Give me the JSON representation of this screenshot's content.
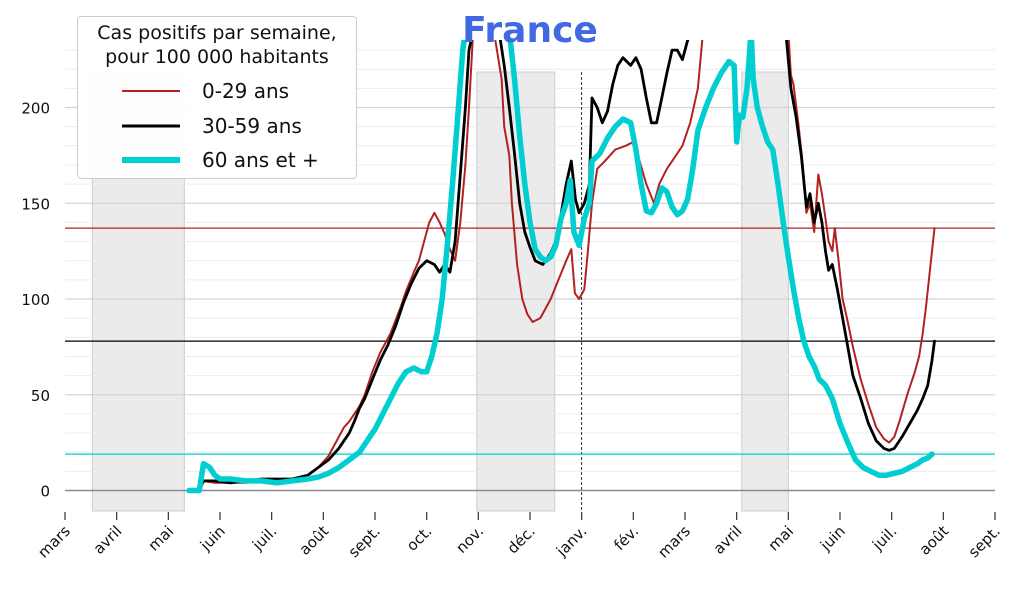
{
  "chart_data": {
    "type": "line",
    "title": "France",
    "legend_title": "Cas positifs par semaine,\npour 100 000 habitants",
    "legend_position": "top-left",
    "ylim": [
      -11,
      240
    ],
    "yticks": [
      0,
      50,
      100,
      150,
      200
    ],
    "x_month_ticks": [
      "mars",
      "avril",
      "mai",
      "juin",
      "juil.",
      "août",
      "sept.",
      "oct.",
      "nov.",
      "déc.",
      "janv.",
      "fév.",
      "mars",
      "avril",
      "mai",
      "juin",
      "juil.",
      "août",
      "sept."
    ],
    "x_unit": "months since 1 March 2020",
    "xlim": [
      0,
      18
    ],
    "shaded_periods": [
      [
        0.53,
        2.31
      ],
      [
        7.97,
        9.48
      ],
      [
        13.1,
        14.0
      ]
    ],
    "vertical_marker": 10.0,
    "grid": true,
    "series": [
      {
        "name": "0-29 ans",
        "color": "#b22222",
        "current_level": 137,
        "points": [
          [
            2.4,
            0
          ],
          [
            2.6,
            0
          ],
          [
            2.68,
            5
          ],
          [
            2.9,
            4
          ],
          [
            3.2,
            4
          ],
          [
            3.5,
            4
          ],
          [
            3.8,
            5
          ],
          [
            4.1,
            5
          ],
          [
            4.4,
            6
          ],
          [
            4.7,
            8
          ],
          [
            4.9,
            12
          ],
          [
            5.1,
            18
          ],
          [
            5.3,
            28
          ],
          [
            5.4,
            33
          ],
          [
            5.5,
            36
          ],
          [
            5.6,
            40
          ],
          [
            5.7,
            44
          ],
          [
            5.8,
            50
          ],
          [
            5.95,
            62
          ],
          [
            6.1,
            72
          ],
          [
            6.3,
            82
          ],
          [
            6.5,
            96
          ],
          [
            6.6,
            104
          ],
          [
            6.75,
            114
          ],
          [
            6.85,
            120
          ],
          [
            6.95,
            130
          ],
          [
            7.05,
            140
          ],
          [
            7.15,
            145
          ],
          [
            7.25,
            140
          ],
          [
            7.35,
            134
          ],
          [
            7.45,
            126
          ],
          [
            7.55,
            120
          ],
          [
            7.65,
            140
          ],
          [
            7.75,
            170
          ],
          [
            7.82,
            200
          ],
          [
            7.9,
            240
          ],
          [
            8.3,
            240
          ],
          [
            8.45,
            215
          ],
          [
            8.5,
            190
          ],
          [
            8.6,
            175
          ],
          [
            8.65,
            150
          ],
          [
            8.75,
            118
          ],
          [
            8.85,
            100
          ],
          [
            8.95,
            92
          ],
          [
            9.05,
            88
          ],
          [
            9.2,
            90
          ],
          [
            9.3,
            95
          ],
          [
            9.4,
            100
          ],
          [
            9.55,
            110
          ],
          [
            9.7,
            120
          ],
          [
            9.8,
            126
          ],
          [
            9.87,
            103
          ],
          [
            9.95,
            100
          ],
          [
            10.05,
            105
          ],
          [
            10.12,
            125
          ],
          [
            10.2,
            150
          ],
          [
            10.3,
            168
          ],
          [
            10.45,
            172
          ],
          [
            10.65,
            178
          ],
          [
            10.85,
            180
          ],
          [
            11.0,
            182
          ],
          [
            11.1,
            174
          ],
          [
            11.25,
            160
          ],
          [
            11.4,
            150
          ],
          [
            11.5,
            160
          ],
          [
            11.65,
            168
          ],
          [
            11.8,
            174
          ],
          [
            11.95,
            180
          ],
          [
            12.1,
            192
          ],
          [
            12.25,
            210
          ],
          [
            12.35,
            240
          ],
          [
            14.0,
            240
          ],
          [
            14.05,
            217
          ],
          [
            14.1,
            212
          ],
          [
            14.2,
            190
          ],
          [
            14.28,
            170
          ],
          [
            14.35,
            145
          ],
          [
            14.42,
            150
          ],
          [
            14.5,
            135
          ],
          [
            14.58,
            165
          ],
          [
            14.65,
            155
          ],
          [
            14.72,
            142
          ],
          [
            14.78,
            130
          ],
          [
            14.85,
            125
          ],
          [
            14.9,
            137
          ],
          [
            14.98,
            118
          ],
          [
            15.05,
            100
          ],
          [
            15.15,
            88
          ],
          [
            15.25,
            75
          ],
          [
            15.4,
            58
          ],
          [
            15.55,
            45
          ],
          [
            15.7,
            33
          ],
          [
            15.85,
            27
          ],
          [
            15.95,
            25
          ],
          [
            16.05,
            28
          ],
          [
            16.15,
            36
          ],
          [
            16.3,
            50
          ],
          [
            16.45,
            62
          ],
          [
            16.53,
            70
          ],
          [
            16.6,
            82
          ],
          [
            16.66,
            95
          ],
          [
            16.72,
            110
          ],
          [
            16.78,
            125
          ],
          [
            16.83,
            137
          ]
        ]
      },
      {
        "name": "30-59 ans",
        "color": "#000000",
        "current_level": 78,
        "points": [
          [
            2.4,
            0
          ],
          [
            2.6,
            0
          ],
          [
            2.68,
            5
          ],
          [
            2.9,
            5
          ],
          [
            3.2,
            4
          ],
          [
            3.5,
            5
          ],
          [
            3.8,
            6
          ],
          [
            4.1,
            6
          ],
          [
            4.4,
            6
          ],
          [
            4.7,
            8
          ],
          [
            4.9,
            12
          ],
          [
            5.1,
            16
          ],
          [
            5.3,
            22
          ],
          [
            5.4,
            26
          ],
          [
            5.5,
            30
          ],
          [
            5.6,
            36
          ],
          [
            5.7,
            43
          ],
          [
            5.8,
            48
          ],
          [
            5.95,
            58
          ],
          [
            6.1,
            68
          ],
          [
            6.25,
            76
          ],
          [
            6.4,
            86
          ],
          [
            6.55,
            98
          ],
          [
            6.7,
            108
          ],
          [
            6.85,
            116
          ],
          [
            7.0,
            120
          ],
          [
            7.15,
            118
          ],
          [
            7.25,
            114
          ],
          [
            7.35,
            118
          ],
          [
            7.45,
            114
          ],
          [
            7.55,
            130
          ],
          [
            7.65,
            165
          ],
          [
            7.75,
            200
          ],
          [
            7.82,
            230
          ],
          [
            7.9,
            240
          ],
          [
            8.4,
            240
          ],
          [
            8.5,
            222
          ],
          [
            8.6,
            200
          ],
          [
            8.7,
            176
          ],
          [
            8.8,
            150
          ],
          [
            8.9,
            135
          ],
          [
            9.0,
            127
          ],
          [
            9.1,
            120
          ],
          [
            9.25,
            118
          ],
          [
            9.4,
            124
          ],
          [
            9.5,
            130
          ],
          [
            9.6,
            144
          ],
          [
            9.7,
            160
          ],
          [
            9.8,
            172
          ],
          [
            9.88,
            152
          ],
          [
            9.95,
            145
          ],
          [
            10.05,
            150
          ],
          [
            10.15,
            160
          ],
          [
            10.2,
            205
          ],
          [
            10.3,
            200
          ],
          [
            10.4,
            192
          ],
          [
            10.5,
            198
          ],
          [
            10.6,
            212
          ],
          [
            10.7,
            222
          ],
          [
            10.8,
            226
          ],
          [
            10.95,
            222
          ],
          [
            11.05,
            226
          ],
          [
            11.15,
            220
          ],
          [
            11.25,
            205
          ],
          [
            11.35,
            192
          ],
          [
            11.45,
            192
          ],
          [
            11.55,
            205
          ],
          [
            11.65,
            218
          ],
          [
            11.75,
            230
          ],
          [
            11.85,
            230
          ],
          [
            11.95,
            225
          ],
          [
            12.05,
            235
          ],
          [
            12.15,
            240
          ],
          [
            13.95,
            240
          ],
          [
            14.0,
            225
          ],
          [
            14.05,
            210
          ],
          [
            14.15,
            195
          ],
          [
            14.25,
            175
          ],
          [
            14.35,
            148
          ],
          [
            14.42,
            155
          ],
          [
            14.5,
            140
          ],
          [
            14.58,
            150
          ],
          [
            14.65,
            140
          ],
          [
            14.72,
            125
          ],
          [
            14.78,
            115
          ],
          [
            14.85,
            118
          ],
          [
            14.95,
            105
          ],
          [
            15.05,
            90
          ],
          [
            15.15,
            75
          ],
          [
            15.25,
            60
          ],
          [
            15.4,
            48
          ],
          [
            15.55,
            35
          ],
          [
            15.7,
            26
          ],
          [
            15.85,
            22
          ],
          [
            15.95,
            21
          ],
          [
            16.05,
            22
          ],
          [
            16.2,
            28
          ],
          [
            16.35,
            35
          ],
          [
            16.5,
            42
          ],
          [
            16.6,
            48
          ],
          [
            16.7,
            55
          ],
          [
            16.78,
            68
          ],
          [
            16.83,
            78
          ]
        ]
      },
      {
        "name": "60 ans et +",
        "color": "#00ced1",
        "current_level": 19,
        "points": [
          [
            2.4,
            0
          ],
          [
            2.6,
            0
          ],
          [
            2.68,
            14
          ],
          [
            2.8,
            12
          ],
          [
            2.9,
            8
          ],
          [
            3.0,
            6
          ],
          [
            3.2,
            6
          ],
          [
            3.5,
            5
          ],
          [
            3.8,
            5
          ],
          [
            4.1,
            4
          ],
          [
            4.4,
            5
          ],
          [
            4.7,
            6
          ],
          [
            4.9,
            7
          ],
          [
            5.1,
            9
          ],
          [
            5.3,
            12
          ],
          [
            5.5,
            16
          ],
          [
            5.7,
            20
          ],
          [
            5.85,
            26
          ],
          [
            6.0,
            32
          ],
          [
            6.15,
            40
          ],
          [
            6.3,
            48
          ],
          [
            6.45,
            56
          ],
          [
            6.6,
            62
          ],
          [
            6.75,
            64
          ],
          [
            6.9,
            62
          ],
          [
            7.0,
            62
          ],
          [
            7.1,
            70
          ],
          [
            7.2,
            82
          ],
          [
            7.3,
            100
          ],
          [
            7.4,
            128
          ],
          [
            7.5,
            160
          ],
          [
            7.6,
            195
          ],
          [
            7.7,
            230
          ],
          [
            7.75,
            240
          ],
          [
            8.6,
            240
          ],
          [
            8.7,
            215
          ],
          [
            8.8,
            185
          ],
          [
            8.9,
            160
          ],
          [
            9.0,
            140
          ],
          [
            9.1,
            126
          ],
          [
            9.2,
            122
          ],
          [
            9.3,
            120
          ],
          [
            9.4,
            122
          ],
          [
            9.5,
            128
          ],
          [
            9.6,
            142
          ],
          [
            9.7,
            150
          ],
          [
            9.78,
            162
          ],
          [
            9.85,
            135
          ],
          [
            9.95,
            128
          ],
          [
            10.05,
            142
          ],
          [
            10.15,
            150
          ],
          [
            10.2,
            172
          ],
          [
            10.35,
            176
          ],
          [
            10.5,
            184
          ],
          [
            10.65,
            190
          ],
          [
            10.8,
            194
          ],
          [
            10.95,
            192
          ],
          [
            11.05,
            178
          ],
          [
            11.15,
            160
          ],
          [
            11.25,
            146
          ],
          [
            11.35,
            145
          ],
          [
            11.45,
            150
          ],
          [
            11.55,
            158
          ],
          [
            11.65,
            156
          ],
          [
            11.75,
            148
          ],
          [
            11.85,
            144
          ],
          [
            11.95,
            146
          ],
          [
            12.05,
            152
          ],
          [
            12.15,
            168
          ],
          [
            12.25,
            188
          ],
          [
            12.4,
            200
          ],
          [
            12.55,
            210
          ],
          [
            12.7,
            218
          ],
          [
            12.85,
            224
          ],
          [
            12.95,
            222
          ],
          [
            13.0,
            182
          ],
          [
            13.05,
            196
          ],
          [
            13.12,
            195
          ],
          [
            13.2,
            210
          ],
          [
            13.28,
            240
          ],
          [
            13.32,
            215
          ],
          [
            13.4,
            200
          ],
          [
            13.5,
            190
          ],
          [
            13.6,
            182
          ],
          [
            13.7,
            178
          ],
          [
            13.8,
            160
          ],
          [
            13.9,
            140
          ],
          [
            14.0,
            122
          ],
          [
            14.1,
            105
          ],
          [
            14.2,
            90
          ],
          [
            14.3,
            78
          ],
          [
            14.4,
            70
          ],
          [
            14.5,
            65
          ],
          [
            14.6,
            58
          ],
          [
            14.72,
            55
          ],
          [
            14.85,
            48
          ],
          [
            15.0,
            35
          ],
          [
            15.15,
            25
          ],
          [
            15.3,
            16
          ],
          [
            15.45,
            12
          ],
          [
            15.6,
            10
          ],
          [
            15.75,
            8
          ],
          [
            15.9,
            8
          ],
          [
            16.05,
            9
          ],
          [
            16.2,
            10
          ],
          [
            16.35,
            12
          ],
          [
            16.5,
            14
          ],
          [
            16.6,
            16
          ],
          [
            16.7,
            17
          ],
          [
            16.78,
            19
          ]
        ]
      }
    ]
  }
}
